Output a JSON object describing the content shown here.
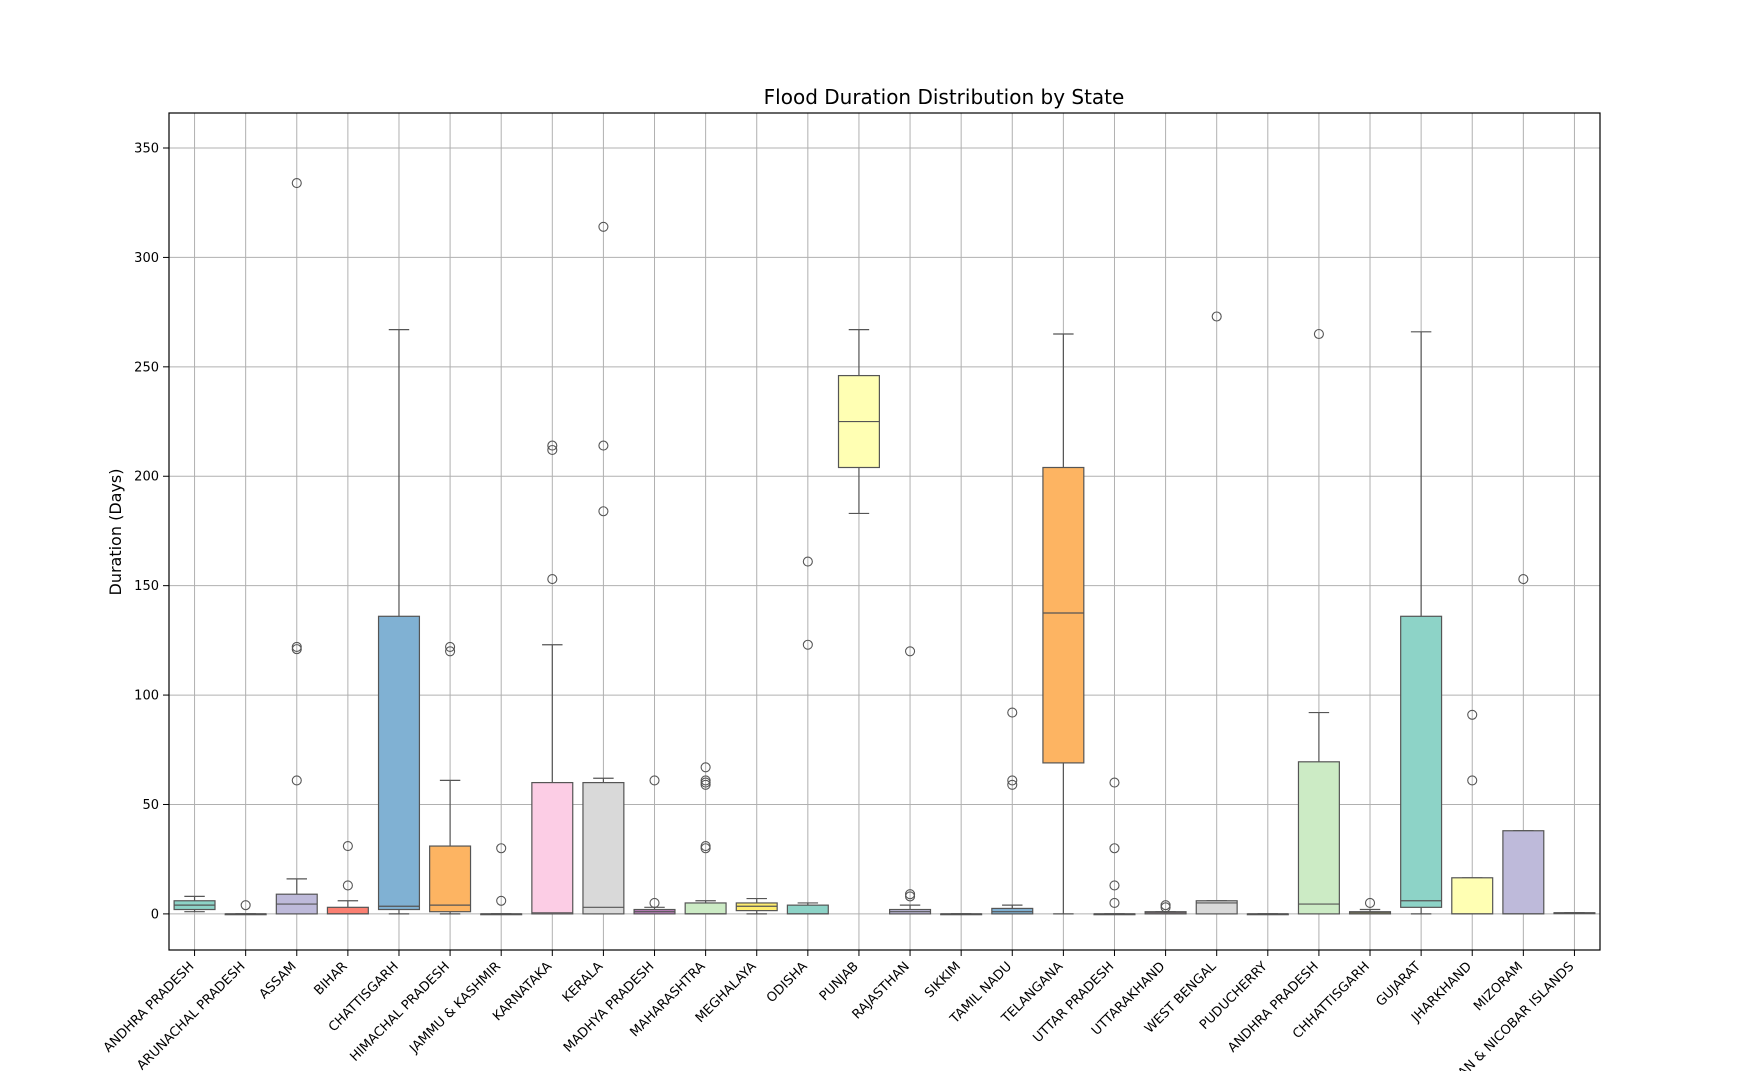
{
  "chart_data": {
    "type": "box",
    "title": "Flood Duration Distribution by State",
    "xlabel": "",
    "ylabel": "Duration (Days)",
    "ylim": [
      -16.5,
      366
    ],
    "yticks": [
      0,
      50,
      100,
      150,
      200,
      250,
      300,
      350
    ],
    "grid": true,
    "categories": [
      "ANDHRA  PRADESH",
      "ARUNACHAL PRADESH",
      "ASSAM",
      "BIHAR",
      "CHATTISGARH",
      "HIMACHAL PRADESH",
      "JAMMU & KASHMIR",
      "KARNATAKA",
      "KERALA",
      "MADHYA PRADESH",
      "MAHARASHTRA",
      "MEGHALAYA",
      "ODISHA",
      "PUNJAB",
      "RAJASTHAN",
      "SIKKIM",
      "TAMIL NADU",
      "TELANGANA",
      "UTTAR PRADESH",
      "UTTARAKHAND",
      "WEST BENGAL",
      "PUDUCHERRY",
      "ANDHRA PRADESH",
      "CHHATTISGARH",
      "GUJARAT",
      "JHARKHAND",
      "MIZORAM",
      "ANDAMAN & NICOBAR ISLANDS"
    ],
    "boxes": [
      {
        "color": "#8dd3c7",
        "whislo": 1,
        "q1": 2,
        "med": 4,
        "q3": 6,
        "whishi": 8,
        "fliers": []
      },
      {
        "color": "#ffffb3",
        "whislo": 0,
        "q1": 0,
        "med": 0,
        "q3": 0,
        "whishi": 0,
        "fliers": [
          4
        ]
      },
      {
        "color": "#bebada",
        "whislo": 0,
        "q1": 0,
        "med": 4.5,
        "q3": 9,
        "whishi": 16,
        "fliers": [
          61,
          121,
          122,
          334
        ]
      },
      {
        "color": "#fb8072",
        "whislo": 0,
        "q1": 0,
        "med": 0,
        "q3": 3,
        "whishi": 6,
        "fliers": [
          13,
          31
        ]
      },
      {
        "color": "#80b1d3",
        "whislo": 0,
        "q1": 2,
        "med": 3.5,
        "q3": 136,
        "whishi": 267,
        "fliers": []
      },
      {
        "color": "#fdb462",
        "whislo": 0,
        "q1": 1,
        "med": 4,
        "q3": 31,
        "whishi": 61,
        "fliers": [
          120,
          122
        ]
      },
      {
        "color": "#b3de69",
        "whislo": 0,
        "q1": 0,
        "med": 0,
        "q3": 0,
        "whishi": 0,
        "fliers": [
          6,
          30
        ]
      },
      {
        "color": "#fccde5",
        "whislo": 0,
        "q1": 0,
        "med": 0.5,
        "q3": 60,
        "whishi": 123,
        "fliers": [
          153,
          212,
          214
        ]
      },
      {
        "color": "#d9d9d9",
        "whislo": 0,
        "q1": 0,
        "med": 3,
        "q3": 60,
        "whishi": 62,
        "fliers": [
          184,
          214,
          314
        ]
      },
      {
        "color": "#bc80bd",
        "whislo": 0,
        "q1": 0,
        "med": 1,
        "q3": 2,
        "whishi": 3,
        "fliers": [
          5,
          61
        ]
      },
      {
        "color": "#ccebc5",
        "whislo": 0,
        "q1": 0,
        "med": 0,
        "q3": 5,
        "whishi": 6,
        "fliers": [
          30,
          31,
          59,
          60,
          61,
          67
        ]
      },
      {
        "color": "#ffed6f",
        "whislo": 0,
        "q1": 1.5,
        "med": 3.5,
        "q3": 5,
        "whishi": 7,
        "fliers": []
      },
      {
        "color": "#8dd3c7",
        "whislo": 0,
        "q1": 0,
        "med": 0,
        "q3": 4,
        "whishi": 5,
        "fliers": [
          123,
          161
        ]
      },
      {
        "color": "#ffffb3",
        "whislo": 183,
        "q1": 204,
        "med": 225,
        "q3": 246,
        "whishi": 267,
        "fliers": []
      },
      {
        "color": "#bebada",
        "whislo": 0,
        "q1": 0,
        "med": 1,
        "q3": 2,
        "whishi": 4,
        "fliers": [
          8,
          9,
          120
        ]
      },
      {
        "color": "#fb8072",
        "whislo": 0,
        "q1": 0,
        "med": 0,
        "q3": 0,
        "whishi": 0,
        "fliers": []
      },
      {
        "color": "#80b1d3",
        "whislo": 0,
        "q1": 0,
        "med": 1,
        "q3": 2.5,
        "whishi": 4,
        "fliers": [
          59,
          61,
          92
        ]
      },
      {
        "color": "#fdb462",
        "whislo": 0,
        "q1": 69,
        "med": 137.5,
        "q3": 204,
        "whishi": 265,
        "fliers": []
      },
      {
        "color": "#b3de69",
        "whislo": 0,
        "q1": 0,
        "med": 0,
        "q3": 0,
        "whishi": 0,
        "fliers": [
          5,
          13,
          30,
          60
        ]
      },
      {
        "color": "#fccde5",
        "whislo": 0,
        "q1": 0,
        "med": 0.5,
        "q3": 1,
        "whishi": 1,
        "fliers": [
          3,
          4
        ]
      },
      {
        "color": "#d9d9d9",
        "whislo": 0,
        "q1": 0,
        "med": 5,
        "q3": 6,
        "whishi": 6,
        "fliers": [
          273
        ]
      },
      {
        "color": "#bc80bd",
        "whislo": 0,
        "q1": 0,
        "med": 0,
        "q3": 0,
        "whishi": 0,
        "fliers": []
      },
      {
        "color": "#ccebc5",
        "whislo": 0,
        "q1": 0,
        "med": 4.5,
        "q3": 69.5,
        "whishi": 92,
        "fliers": [
          265
        ]
      },
      {
        "color": "#ffed6f",
        "whislo": 0,
        "q1": 0,
        "med": 0.5,
        "q3": 1,
        "whishi": 2,
        "fliers": [
          5
        ]
      },
      {
        "color": "#8dd3c7",
        "whislo": 0,
        "q1": 3,
        "med": 6,
        "q3": 136,
        "whishi": 266,
        "fliers": []
      },
      {
        "color": "#ffffb3",
        "whislo": 0,
        "q1": 0,
        "med": 0,
        "q3": 16.5,
        "whishi": 16.5,
        "fliers": [
          61,
          91
        ]
      },
      {
        "color": "#bebada",
        "whislo": 0,
        "q1": 0,
        "med": 0,
        "q3": 38,
        "whishi": 38,
        "fliers": [
          153
        ]
      },
      {
        "color": "#fb8072",
        "whislo": 0.5,
        "q1": 0.5,
        "med": 0.5,
        "q3": 0.5,
        "whishi": 0.5,
        "fliers": []
      }
    ]
  }
}
